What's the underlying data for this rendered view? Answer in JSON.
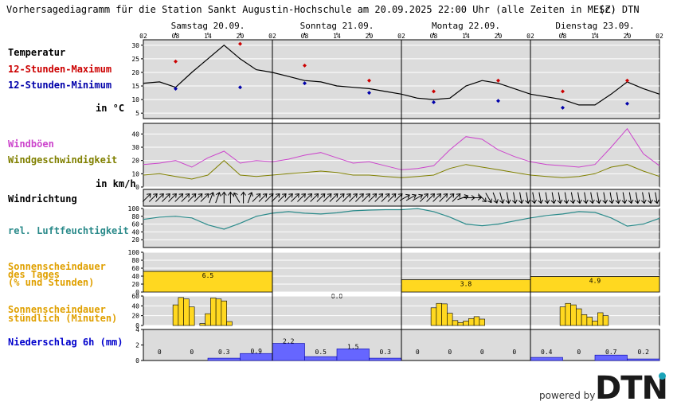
{
  "header": {
    "title": "Vorhersagediagramm für die Station Sankt Augustin-Hochschule am 20.09.2025 22:00 Uhr (alle Zeiten in MESZ)",
    "copyright": "(c) DTN"
  },
  "days": [
    "Samstag 20.09.",
    "Sonntag 21.09.",
    "Montag 22.09.",
    "Dienstag 23.09."
  ],
  "hour_ticks": [
    "02",
    "08",
    "14",
    "20",
    "02",
    "08",
    "14",
    "20",
    "02",
    "08",
    "14",
    "20",
    "02",
    "08",
    "14",
    "20",
    "02"
  ],
  "labels": {
    "temperatur": "Temperatur",
    "max": "12-Stunden-Maximum",
    "min": "12-Stunden-Minimum",
    "temp_unit": "in °C",
    "windboeen": "Windböen",
    "windgeschw": "Windgeschwindigkeit",
    "wind_unit": "in km/h",
    "windrichtung": "Windrichtung",
    "feuchte": "rel. Luftfeuchtigkeit",
    "sonne_tag_1": "Sonnenscheindauer",
    "sonne_tag_2": "des Tages",
    "sonne_tag_3": "(% und Stunden)",
    "sonne_std_1": "Sonnenscheindauer",
    "sonne_std_2": "stündlich (Minuten)",
    "niederschlag": "Niederschlag 6h (mm)"
  },
  "brand": {
    "powered_by": "powered by",
    "logo": "DTN"
  },
  "colors": {
    "max": "#cc0000",
    "min": "#0000aa",
    "boeen": "#cc44cc",
    "wind": "#808000",
    "feuchte": "#2a8a8a",
    "sonne": "#ffd820",
    "niederschlag": "#6666ff",
    "panel": "#dcdcdc"
  },
  "chart_data": [
    {
      "name": "temperature",
      "type": "line",
      "ylim": [
        3,
        32
      ],
      "yticks": [
        5,
        10,
        15,
        20,
        25,
        30
      ],
      "x_hours": [
        0,
        3,
        6,
        9,
        12,
        15,
        18,
        21,
        24,
        27,
        30,
        33,
        36,
        39,
        42,
        45,
        48,
        51,
        54,
        57,
        60,
        63,
        66,
        69,
        72,
        75,
        78,
        81,
        84,
        87,
        90,
        93,
        96
      ],
      "values": [
        16,
        16.5,
        14.5,
        20,
        25,
        30,
        25,
        21,
        20,
        18.5,
        17,
        16.5,
        15,
        14.5,
        14,
        13,
        12,
        10.5,
        10,
        10.5,
        15,
        17,
        16,
        14,
        12,
        11,
        10,
        8,
        8,
        12,
        16.5,
        14,
        12
      ],
      "max_points": [
        {
          "h": 6,
          "v": 24
        },
        {
          "h": 18,
          "v": 30.5
        },
        {
          "h": 30,
          "v": 22.5
        },
        {
          "h": 42,
          "v": 17
        },
        {
          "h": 54,
          "v": 13
        },
        {
          "h": 66,
          "v": 17
        },
        {
          "h": 78,
          "v": 13
        },
        {
          "h": 90,
          "v": 17
        }
      ],
      "min_points": [
        {
          "h": 6,
          "v": 14
        },
        {
          "h": 18,
          "v": 14.5
        },
        {
          "h": 30,
          "v": 16
        },
        {
          "h": 42,
          "v": 12.5
        },
        {
          "h": 54,
          "v": 9
        },
        {
          "h": 66,
          "v": 9.5
        },
        {
          "h": 78,
          "v": 7
        },
        {
          "h": 90,
          "v": 8.5
        }
      ]
    },
    {
      "name": "wind",
      "type": "line",
      "ylim": [
        0,
        48
      ],
      "yticks": [
        0,
        10,
        20,
        30,
        40
      ],
      "x_hours": [
        0,
        3,
        6,
        9,
        12,
        15,
        18,
        21,
        24,
        27,
        30,
        33,
        36,
        39,
        42,
        45,
        48,
        51,
        54,
        57,
        60,
        63,
        66,
        69,
        72,
        75,
        78,
        81,
        84,
        87,
        90,
        93,
        96
      ],
      "gusts": [
        17,
        18,
        20,
        15,
        22,
        27,
        18,
        20,
        19,
        21,
        24,
        26,
        22,
        18,
        19,
        16,
        13,
        14,
        16,
        28,
        38,
        36,
        28,
        23,
        19,
        17,
        16,
        15,
        17,
        30,
        44,
        25,
        16
      ],
      "speed": [
        9,
        10,
        8,
        6,
        9,
        20,
        9,
        8,
        9,
        10,
        11,
        12,
        11,
        9,
        9,
        8,
        7,
        8,
        9,
        14,
        17,
        15,
        13,
        11,
        9,
        8,
        7,
        8,
        10,
        15,
        17,
        12,
        8
      ]
    },
    {
      "name": "wind_direction",
      "type": "table",
      "angles_deg": [
        225,
        225,
        225,
        225,
        225,
        225,
        225,
        225,
        225,
        225,
        200,
        200,
        180,
        180,
        150,
        180,
        200,
        225,
        225,
        225,
        225,
        225,
        225,
        225,
        225,
        225,
        225,
        225,
        225,
        225,
        225,
        225,
        225,
        225,
        225,
        225,
        225,
        225,
        225,
        225,
        240,
        240,
        240,
        225,
        225,
        225,
        225,
        225,
        225,
        250,
        270,
        270,
        315,
        330,
        340,
        345,
        350,
        350,
        350,
        350,
        350,
        350,
        350,
        350,
        350,
        350,
        350,
        350,
        350,
        350,
        350,
        350,
        350,
        350,
        350,
        350,
        350,
        350,
        350,
        350
      ]
    },
    {
      "name": "humidity",
      "type": "line",
      "ylim": [
        0,
        100
      ],
      "yticks": [
        20,
        40,
        60,
        80,
        100
      ],
      "x_hours": [
        0,
        3,
        6,
        9,
        12,
        15,
        18,
        21,
        24,
        27,
        30,
        33,
        36,
        39,
        42,
        45,
        48,
        51,
        54,
        57,
        60,
        63,
        66,
        69,
        72,
        75,
        78,
        81,
        84,
        87,
        90,
        93,
        96
      ],
      "values": [
        72,
        78,
        80,
        76,
        58,
        47,
        62,
        80,
        88,
        92,
        88,
        86,
        89,
        94,
        96,
        97,
        97,
        100,
        92,
        78,
        60,
        56,
        60,
        68,
        76,
        82,
        86,
        92,
        90,
        76,
        55,
        60,
        75
      ]
    },
    {
      "name": "sunshine_daily",
      "type": "bar",
      "ylim": [
        0,
        100
      ],
      "yticks": [
        0,
        20,
        40,
        60,
        80,
        100
      ],
      "categories": [
        "Samstag 20.09.",
        "Sonntag 21.09.",
        "Montag 22.09.",
        "Dienstag 23.09."
      ],
      "percent": [
        52,
        0,
        31,
        39
      ],
      "hours_labels": [
        "6.5",
        "0.0",
        "3.8",
        "4.9"
      ]
    },
    {
      "name": "sunshine_hourly",
      "type": "bar",
      "ylim": [
        0,
        60
      ],
      "yticks": [
        0,
        20,
        40,
        60
      ],
      "bars": [
        {
          "h": 6,
          "v": 42
        },
        {
          "h": 7,
          "v": 57
        },
        {
          "h": 8,
          "v": 54
        },
        {
          "h": 9,
          "v": 38
        },
        {
          "h": 11,
          "v": 4
        },
        {
          "h": 12,
          "v": 24
        },
        {
          "h": 13,
          "v": 56
        },
        {
          "h": 14,
          "v": 54
        },
        {
          "h": 15,
          "v": 50
        },
        {
          "h": 16,
          "v": 8
        },
        {
          "h": 54,
          "v": 36
        },
        {
          "h": 55,
          "v": 45
        },
        {
          "h": 56,
          "v": 44
        },
        {
          "h": 57,
          "v": 25
        },
        {
          "h": 58,
          "v": 10
        },
        {
          "h": 59,
          "v": 6
        },
        {
          "h": 60,
          "v": 9
        },
        {
          "h": 61,
          "v": 14
        },
        {
          "h": 62,
          "v": 18
        },
        {
          "h": 63,
          "v": 13
        },
        {
          "h": 78,
          "v": 38
        },
        {
          "h": 79,
          "v": 45
        },
        {
          "h": 80,
          "v": 42
        },
        {
          "h": 81,
          "v": 34
        },
        {
          "h": 82,
          "v": 22
        },
        {
          "h": 83,
          "v": 17
        },
        {
          "h": 84,
          "v": 9
        },
        {
          "h": 85,
          "v": 26
        },
        {
          "h": 86,
          "v": 20
        }
      ]
    },
    {
      "name": "precipitation_6h",
      "type": "bar",
      "ylim": [
        0,
        4
      ],
      "yticks": [
        0,
        2,
        4
      ],
      "values": [
        0,
        0,
        0.3,
        0.9,
        2.2,
        0.5,
        1.5,
        0.3,
        0,
        0,
        0,
        0,
        0.4,
        0,
        0.7,
        0.2
      ],
      "value_labels": [
        "0",
        "0",
        "0.3",
        "0.9",
        "2.2",
        "0.5",
        "1.5",
        "0.3",
        "0",
        "0",
        "0",
        "0",
        "0.4",
        "0",
        "0.7",
        "0.2"
      ]
    }
  ]
}
